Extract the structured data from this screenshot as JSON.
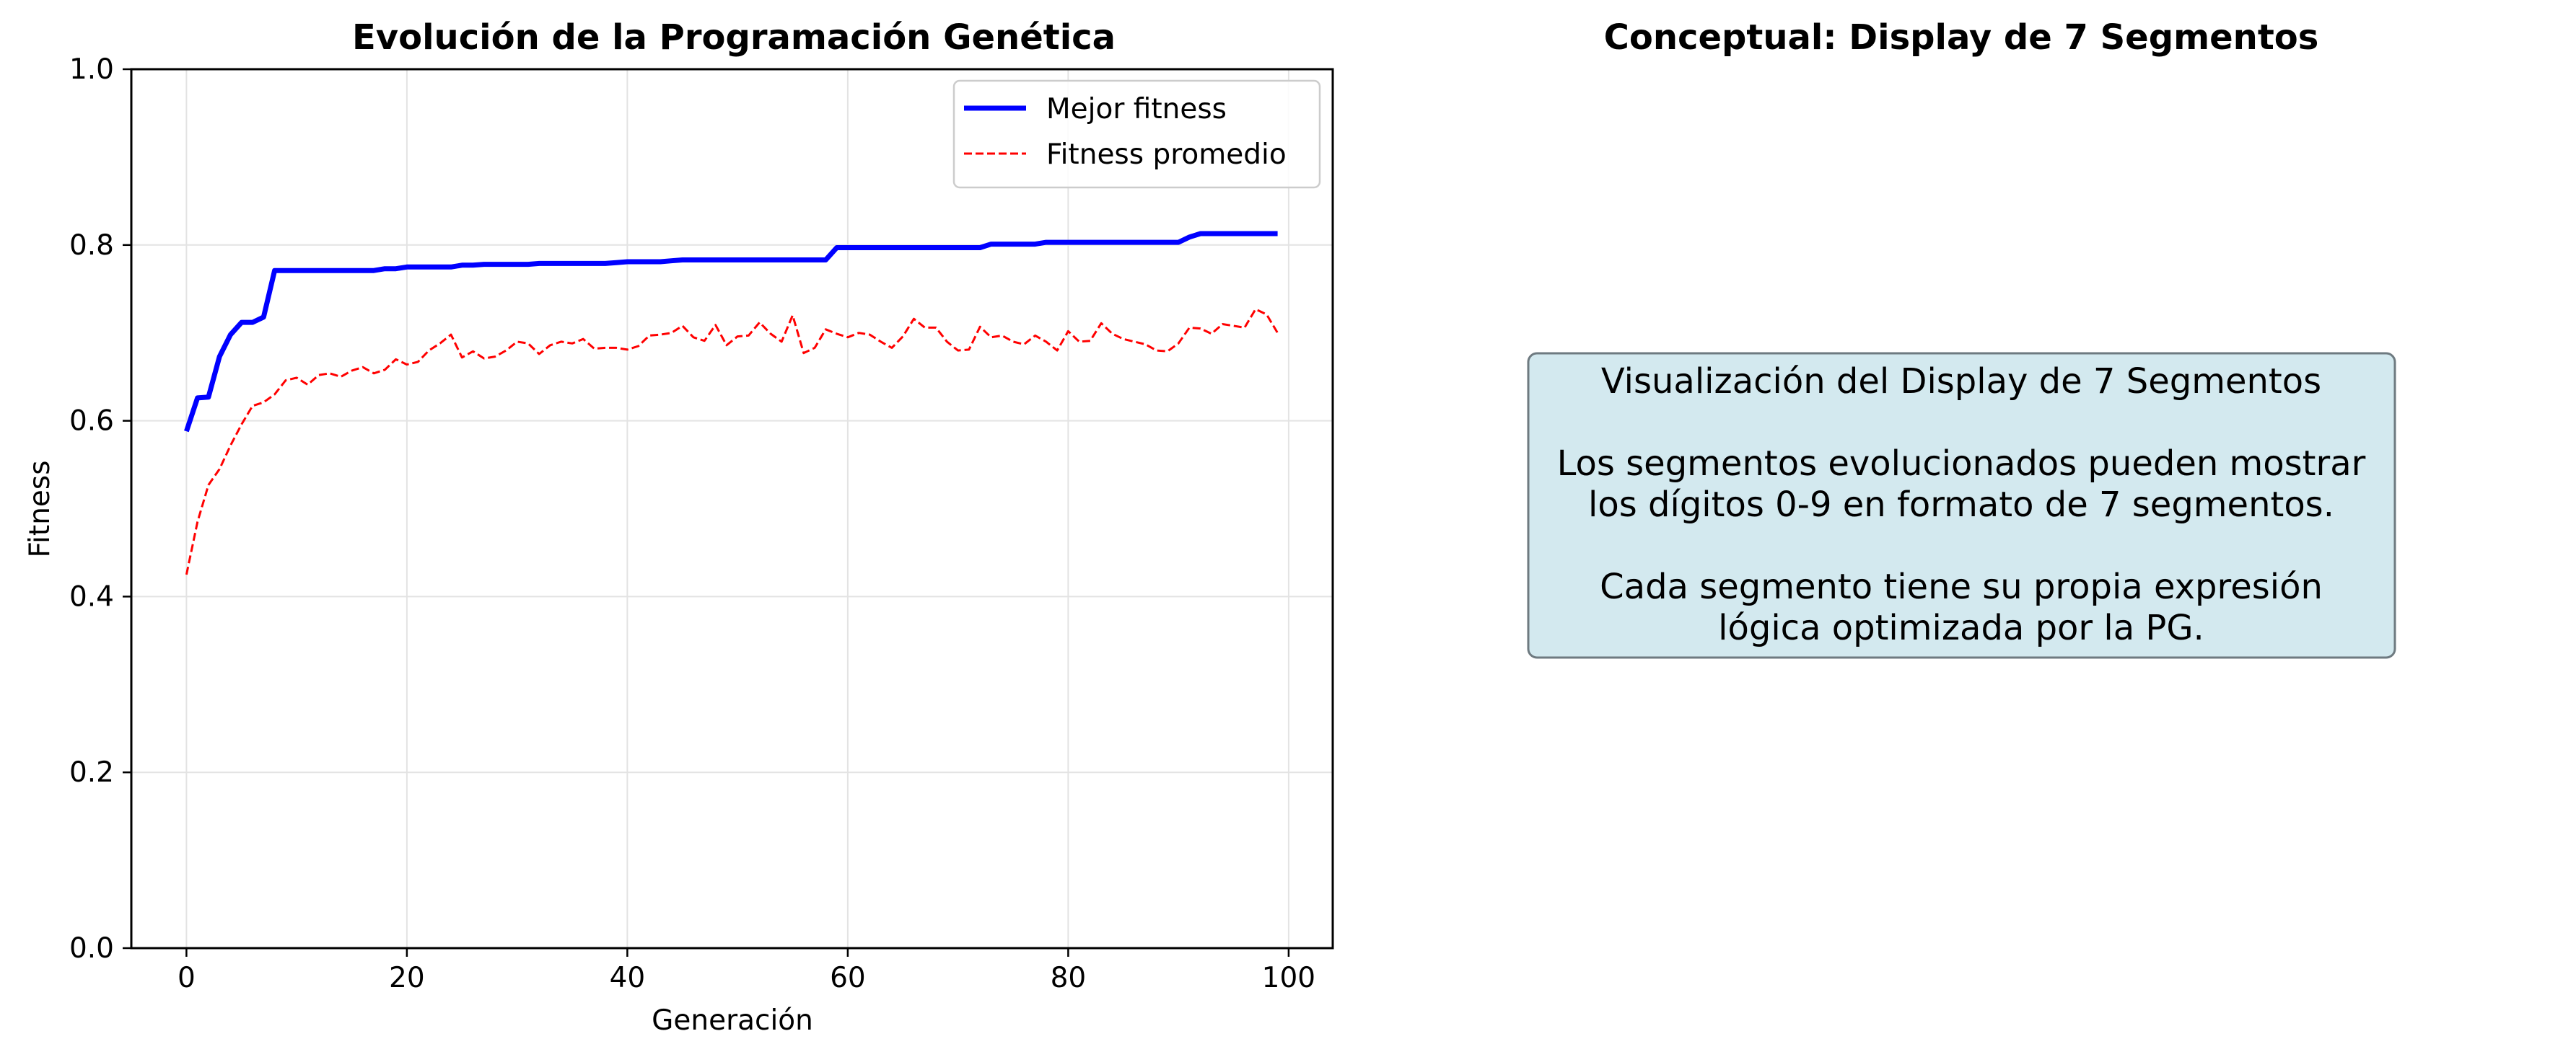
{
  "chart_data": [
    {
      "type": "line",
      "title": "Evolución de la Programación Genética",
      "xlabel": "Generación",
      "ylabel": "Fitness",
      "xlim": [
        -5,
        104
      ],
      "ylim": [
        0.0,
        1.0
      ],
      "xticks": [
        "0",
        "20",
        "40",
        "60",
        "80",
        "100"
      ],
      "yticks": [
        "0.0",
        "0.2",
        "0.4",
        "0.6",
        "0.8",
        "1.0"
      ],
      "grid": true,
      "legend_position": "upper right",
      "series": [
        {
          "name": "Mejor fitness",
          "color": "#0000ff",
          "style": "solid",
          "x": [
            0,
            1,
            2,
            3,
            4,
            5,
            6,
            7,
            8,
            9,
            10,
            11,
            12,
            13,
            14,
            15,
            16,
            17,
            18,
            19,
            20,
            21,
            22,
            23,
            24,
            25,
            26,
            27,
            28,
            29,
            30,
            31,
            32,
            33,
            34,
            35,
            36,
            37,
            38,
            39,
            40,
            41,
            42,
            43,
            44,
            45,
            46,
            47,
            48,
            49,
            50,
            51,
            52,
            53,
            54,
            55,
            56,
            57,
            58,
            59,
            60,
            61,
            62,
            63,
            64,
            65,
            66,
            67,
            68,
            69,
            70,
            71,
            72,
            73,
            74,
            75,
            76,
            77,
            78,
            79,
            80,
            81,
            82,
            83,
            84,
            85,
            86,
            87,
            88,
            89,
            90,
            91,
            92,
            93,
            94,
            95,
            96,
            97,
            98,
            99
          ],
          "values": [
            0.588,
            0.626,
            0.627,
            0.673,
            0.698,
            0.712,
            0.712,
            0.718,
            0.771,
            0.771,
            0.771,
            0.771,
            0.771,
            0.771,
            0.771,
            0.771,
            0.771,
            0.771,
            0.773,
            0.773,
            0.775,
            0.775,
            0.775,
            0.775,
            0.775,
            0.777,
            0.777,
            0.778,
            0.778,
            0.778,
            0.778,
            0.778,
            0.779,
            0.779,
            0.779,
            0.779,
            0.779,
            0.779,
            0.779,
            0.78,
            0.781,
            0.781,
            0.781,
            0.781,
            0.782,
            0.783,
            0.783,
            0.783,
            0.783,
            0.783,
            0.783,
            0.783,
            0.783,
            0.783,
            0.783,
            0.783,
            0.783,
            0.783,
            0.783,
            0.797,
            0.797,
            0.797,
            0.797,
            0.797,
            0.797,
            0.797,
            0.797,
            0.797,
            0.797,
            0.797,
            0.797,
            0.797,
            0.797,
            0.801,
            0.801,
            0.801,
            0.801,
            0.801,
            0.803,
            0.803,
            0.803,
            0.803,
            0.803,
            0.803,
            0.803,
            0.803,
            0.803,
            0.803,
            0.803,
            0.803,
            0.803,
            0.809,
            0.813,
            0.813,
            0.813,
            0.813,
            0.813,
            0.813,
            0.813,
            0.813
          ]
        },
        {
          "name": "Fitness promedio",
          "color": "#ff0000",
          "style": "dashed",
          "x": [
            0,
            1,
            2,
            3,
            4,
            5,
            6,
            7,
            8,
            9,
            10,
            11,
            12,
            13,
            14,
            15,
            16,
            17,
            18,
            19,
            20,
            21,
            22,
            23,
            24,
            25,
            26,
            27,
            28,
            29,
            30,
            31,
            32,
            33,
            34,
            35,
            36,
            37,
            38,
            39,
            40,
            41,
            42,
            43,
            44,
            45,
            46,
            47,
            48,
            49,
            50,
            51,
            52,
            53,
            54,
            55,
            56,
            57,
            58,
            59,
            60,
            61,
            62,
            63,
            64,
            65,
            66,
            67,
            68,
            69,
            70,
            71,
            72,
            73,
            74,
            75,
            76,
            77,
            78,
            79,
            80,
            81,
            82,
            83,
            84,
            85,
            86,
            87,
            88,
            89,
            90,
            91,
            92,
            93,
            94,
            95,
            96,
            97,
            98,
            99
          ],
          "values": [
            0.425,
            0.485,
            0.527,
            0.545,
            0.572,
            0.596,
            0.617,
            0.621,
            0.63,
            0.646,
            0.649,
            0.641,
            0.652,
            0.654,
            0.65,
            0.657,
            0.661,
            0.654,
            0.658,
            0.67,
            0.664,
            0.667,
            0.68,
            0.688,
            0.698,
            0.672,
            0.679,
            0.671,
            0.673,
            0.68,
            0.69,
            0.688,
            0.676,
            0.686,
            0.69,
            0.688,
            0.693,
            0.682,
            0.683,
            0.683,
            0.681,
            0.685,
            0.697,
            0.698,
            0.7,
            0.708,
            0.695,
            0.691,
            0.709,
            0.686,
            0.696,
            0.697,
            0.712,
            0.699,
            0.69,
            0.72,
            0.677,
            0.683,
            0.704,
            0.699,
            0.695,
            0.7,
            0.698,
            0.69,
            0.683,
            0.696,
            0.716,
            0.706,
            0.706,
            0.69,
            0.68,
            0.681,
            0.707,
            0.695,
            0.697,
            0.69,
            0.687,
            0.697,
            0.69,
            0.68,
            0.702,
            0.69,
            0.691,
            0.711,
            0.699,
            0.693,
            0.69,
            0.687,
            0.68,
            0.679,
            0.688,
            0.706,
            0.705,
            0.699,
            0.71,
            0.708,
            0.706,
            0.727,
            0.721,
            0.7
          ]
        }
      ]
    },
    {
      "type": "text",
      "title": "Conceptual: Display de 7 Segmentos",
      "box_color": "#d3e9ef",
      "text_lines": [
        "Visualización del Display de 7 Segmentos",
        "",
        "Los segmentos evolucionados pueden mostrar",
        "los dígitos 0-9 en formato de 7 segmentos.",
        "",
        "Cada segmento tiene su propia expresión",
        "lógica optimizada por la PG."
      ]
    }
  ]
}
